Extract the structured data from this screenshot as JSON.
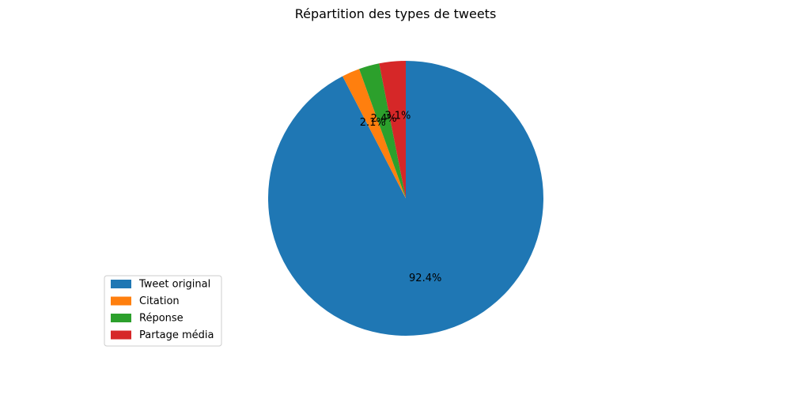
{
  "chart_data": {
    "type": "pie",
    "title": "Répartition des types de tweets",
    "slices": [
      {
        "label": "Tweet original",
        "value": 92.4,
        "pct_label": "92.4%",
        "color": "#1f77b4"
      },
      {
        "label": "Citation",
        "value": 2.1,
        "pct_label": "2.1%",
        "color": "#ff7f0e"
      },
      {
        "label": "Réponse",
        "value": 2.4,
        "pct_label": "2.4%",
        "color": "#2ca02c"
      },
      {
        "label": "Partage média",
        "value": 3.1,
        "pct_label": "3.1%",
        "color": "#d62728"
      }
    ],
    "start_angle": "90°",
    "direction": "clockwise",
    "legend_position": "lower-left"
  }
}
